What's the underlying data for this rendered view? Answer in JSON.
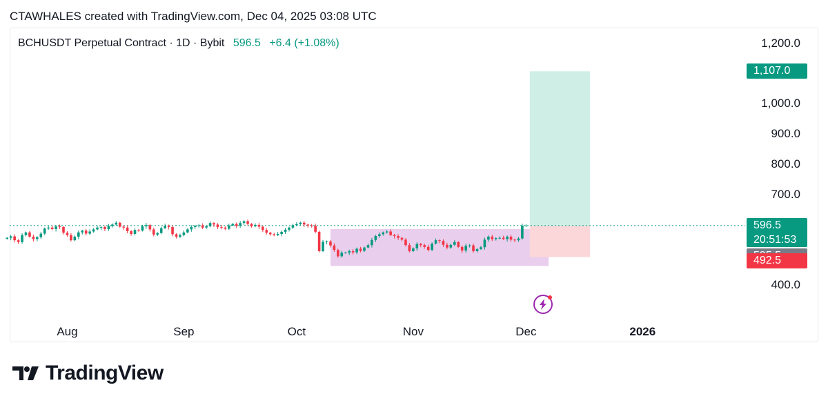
{
  "header": {
    "caption": "CTAWHALES created with TradingView.com, Dec 04, 2025 03:08 UTC"
  },
  "legend": {
    "symbol": "BCHUSDT Perpetual Contract · 1D · Bybit",
    "price": "596.5",
    "change": "+6.4 (+1.08%)"
  },
  "footer": {
    "brand": "TradingView"
  },
  "colors": {
    "up": "#089981",
    "down": "#f23645",
    "range_box": "#e1bee7",
    "profit_zone": "#cfeee6",
    "loss_zone": "#fbd7da",
    "gray_tag": "#787b86",
    "lightning": "#9c27b0"
  },
  "chart_data": {
    "type": "candlestick",
    "y_axis": {
      "ticks": [
        "1,200.0",
        "1,000.0",
        "900.0",
        "800.0",
        "700.0",
        "400.0"
      ],
      "tick_values": [
        1200,
        1000,
        900,
        800,
        700,
        400
      ]
    },
    "x_axis": {
      "ticks": [
        "Aug",
        "Sep",
        "Oct",
        "Nov",
        "Dec",
        "2026"
      ],
      "tick_dates": [
        "2025-08-01",
        "2025-09-01",
        "2025-10-01",
        "2025-11-01",
        "2025-12-01",
        "2026-01-01"
      ]
    },
    "price_tags": [
      {
        "label": "1,107.0",
        "value": 1107,
        "color": "#089981"
      },
      {
        "label": "596.5",
        "sub": "20:51:53",
        "value": 596.5,
        "color": "#089981"
      },
      {
        "label": "595.5",
        "value": 595.5,
        "color": "#787b86"
      },
      {
        "label": "492.5",
        "value": 492.5,
        "color": "#f23645"
      }
    ],
    "last_price": 596.5,
    "start_date": "2025-07-16",
    "closes": [
      556,
      561,
      548,
      542,
      565,
      574,
      560,
      552,
      558,
      570,
      587,
      590,
      585,
      594,
      592,
      573,
      565,
      548,
      560,
      574,
      580,
      570,
      577,
      584,
      590,
      592,
      585,
      595,
      600,
      606,
      593,
      590,
      578,
      569,
      582,
      580,
      594,
      598,
      584,
      567,
      572,
      588,
      596,
      592,
      568,
      560,
      565,
      574,
      584,
      592,
      596,
      597,
      590,
      594,
      605,
      600,
      592,
      590,
      586,
      597,
      602,
      596,
      605,
      611,
      602,
      594,
      599,
      593,
      582,
      573,
      568,
      565,
      569,
      576,
      583,
      590,
      598,
      601,
      606,
      600,
      597,
      596,
      576,
      512,
      543,
      544,
      531,
      516,
      495,
      507,
      507,
      512,
      508,
      520,
      513,
      524,
      532,
      549,
      562,
      568,
      574,
      577,
      565,
      562,
      556,
      550,
      532,
      512,
      521,
      536,
      532,
      526,
      516,
      537,
      548,
      546,
      533,
      524,
      533,
      542,
      526,
      514,
      530,
      531,
      512,
      519,
      525,
      550,
      560,
      552,
      555,
      556,
      552,
      560,
      550,
      548,
      554,
      596,
      596.5
    ],
    "range_box": {
      "from": "2025-10-10",
      "to": "2025-12-07",
      "low": 463,
      "high": 585
    },
    "position": {
      "from": "2025-12-02",
      "to": "2025-12-18",
      "entry": 595.5,
      "target": 1107,
      "stop": 492.5
    }
  }
}
